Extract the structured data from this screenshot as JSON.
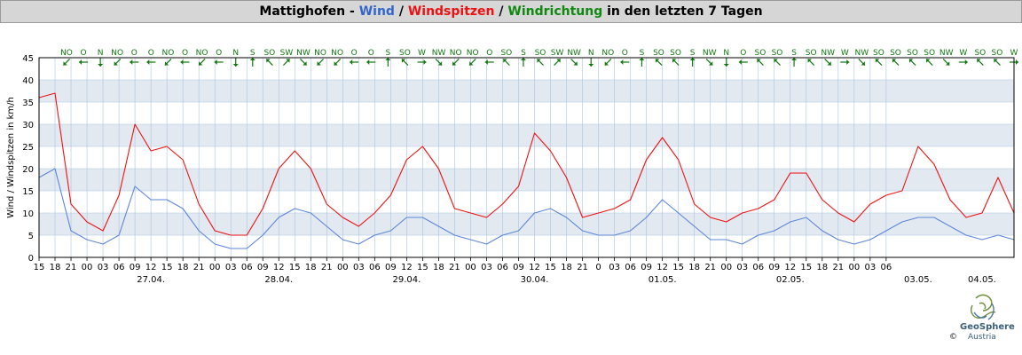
{
  "title": {
    "place": "Mattighofen",
    "sep1": " - ",
    "wind": "Wind",
    "sep2": " / ",
    "gusts": "Windspitzen",
    "sep3": " / ",
    "direction": "Windrichtung",
    "rest": " in den letzten 7 Tagen"
  },
  "logo": {
    "name": "GeoSphere",
    "sub": "Austria",
    "copyright": "©"
  },
  "colors": {
    "wind": "#5b86d9",
    "gusts": "#ee1111",
    "direction": "#117711",
    "band": "#e3e9f1",
    "grid": "#a9c3e0"
  },
  "chart_data": {
    "type": "line",
    "title": "Mattighofen - Wind / Windspitzen / Windrichtung in den letzten 7 Tagen",
    "ylabel": "Wind / Windspitzen in km/h",
    "ylim": [
      0,
      45
    ],
    "yticks": [
      0,
      5,
      10,
      15,
      20,
      25,
      30,
      35,
      40,
      45
    ],
    "x_start": "2024-04-26 15:00",
    "x_end": "2024-05-04 06:00",
    "xtick_hours": [
      "15",
      "18",
      "21",
      "00",
      "03",
      "06",
      "09",
      "12",
      "15",
      "18",
      "21",
      "00",
      "03",
      "06",
      "09",
      "12",
      "15",
      "18",
      "21",
      "00",
      "03",
      "06",
      "09",
      "12",
      "15",
      "18",
      "21",
      "00",
      "03",
      "06",
      "09",
      "12",
      "15",
      "18",
      "21",
      "0",
      "03",
      "06",
      "09",
      "12",
      "15",
      "18",
      "21",
      "00",
      "03",
      "06",
      "09",
      "12",
      "15",
      "18",
      "21",
      "00",
      "03",
      "06"
    ],
    "date_labels": [
      {
        "label": "27.04.",
        "at": "2024-04-27 12:00"
      },
      {
        "label": "28.04.",
        "at": "2024-04-28 12:00"
      },
      {
        "label": "29.04.",
        "at": "2024-04-29 12:00"
      },
      {
        "label": "30.04.",
        "at": "2024-04-30 12:00"
      },
      {
        "label": "01.05.",
        "at": "2024-05-01 12:00"
      },
      {
        "label": "02.05.",
        "at": "2024-05-02 12:00"
      },
      {
        "label": "03.05.",
        "at": "2024-05-03 12:00"
      },
      {
        "label": "04.05.",
        "at": "2024-05-04 00:00"
      }
    ],
    "series": [
      {
        "name": "Wind",
        "color": "#5b86d9",
        "time": [
          "2024-04-26 15:00",
          "2024-04-26 18:00",
          "2024-04-26 21:00",
          "2024-04-27 00:00",
          "2024-04-27 03:00",
          "2024-04-27 06:00",
          "2024-04-27 09:00",
          "2024-04-27 12:00",
          "2024-04-27 15:00",
          "2024-04-27 18:00",
          "2024-04-27 21:00",
          "2024-04-28 00:00",
          "2024-04-28 03:00",
          "2024-04-28 06:00",
          "2024-04-28 09:00",
          "2024-04-28 12:00",
          "2024-04-28 15:00",
          "2024-04-28 18:00",
          "2024-04-28 21:00",
          "2024-04-29 00:00",
          "2024-04-29 03:00",
          "2024-04-29 06:00",
          "2024-04-29 09:00",
          "2024-04-29 12:00",
          "2024-04-29 15:00",
          "2024-04-29 18:00",
          "2024-04-29 21:00",
          "2024-04-30 00:00",
          "2024-04-30 03:00",
          "2024-04-30 06:00",
          "2024-04-30 09:00",
          "2024-04-30 12:00",
          "2024-04-30 15:00",
          "2024-04-30 18:00",
          "2024-04-30 21:00",
          "2024-05-01 00:00",
          "2024-05-01 03:00",
          "2024-05-01 06:00",
          "2024-05-01 09:00",
          "2024-05-01 12:00",
          "2024-05-01 15:00",
          "2024-05-01 18:00",
          "2024-05-01 21:00",
          "2024-05-02 00:00",
          "2024-05-02 03:00",
          "2024-05-02 06:00",
          "2024-05-02 09:00",
          "2024-05-02 12:00",
          "2024-05-02 15:00",
          "2024-05-02 18:00",
          "2024-05-02 21:00",
          "2024-05-03 00:00",
          "2024-05-03 03:00",
          "2024-05-03 06:00",
          "2024-05-03 09:00",
          "2024-05-03 12:00",
          "2024-05-03 15:00",
          "2024-05-03 18:00",
          "2024-05-03 21:00",
          "2024-05-04 00:00",
          "2024-05-04 03:00",
          "2024-05-04 06:00"
        ],
        "values": [
          18,
          20,
          6,
          4,
          3,
          5,
          16,
          13,
          13,
          11,
          6,
          3,
          2,
          2,
          5,
          9,
          11,
          10,
          7,
          4,
          3,
          5,
          6,
          9,
          9,
          7,
          5,
          4,
          3,
          5,
          6,
          10,
          11,
          9,
          6,
          5,
          5,
          6,
          9,
          13,
          10,
          7,
          4,
          4,
          3,
          5,
          6,
          8,
          9,
          6,
          4,
          3,
          4,
          6,
          8,
          9,
          9,
          7,
          5,
          4,
          5,
          4
        ]
      },
      {
        "name": "Windspitzen",
        "color": "#ee1111",
        "time": [
          "2024-04-26 15:00",
          "2024-04-26 18:00",
          "2024-04-26 21:00",
          "2024-04-27 00:00",
          "2024-04-27 03:00",
          "2024-04-27 06:00",
          "2024-04-27 09:00",
          "2024-04-27 12:00",
          "2024-04-27 15:00",
          "2024-04-27 18:00",
          "2024-04-27 21:00",
          "2024-04-28 00:00",
          "2024-04-28 03:00",
          "2024-04-28 06:00",
          "2024-04-28 09:00",
          "2024-04-28 12:00",
          "2024-04-28 15:00",
          "2024-04-28 18:00",
          "2024-04-28 21:00",
          "2024-04-29 00:00",
          "2024-04-29 03:00",
          "2024-04-29 06:00",
          "2024-04-29 09:00",
          "2024-04-29 12:00",
          "2024-04-29 15:00",
          "2024-04-29 18:00",
          "2024-04-29 21:00",
          "2024-04-30 00:00",
          "2024-04-30 03:00",
          "2024-04-30 06:00",
          "2024-04-30 09:00",
          "2024-04-30 12:00",
          "2024-04-30 15:00",
          "2024-04-30 18:00",
          "2024-04-30 21:00",
          "2024-05-01 00:00",
          "2024-05-01 03:00",
          "2024-05-01 06:00",
          "2024-05-01 09:00",
          "2024-05-01 12:00",
          "2024-05-01 15:00",
          "2024-05-01 18:00",
          "2024-05-01 21:00",
          "2024-05-02 00:00",
          "2024-05-02 03:00",
          "2024-05-02 06:00",
          "2024-05-02 09:00",
          "2024-05-02 12:00",
          "2024-05-02 15:00",
          "2024-05-02 18:00",
          "2024-05-02 21:00",
          "2024-05-03 00:00",
          "2024-05-03 03:00",
          "2024-05-03 06:00",
          "2024-05-03 09:00",
          "2024-05-03 12:00",
          "2024-05-03 15:00",
          "2024-05-03 18:00",
          "2024-05-03 21:00",
          "2024-05-04 00:00",
          "2024-05-04 03:00",
          "2024-05-04 06:00"
        ],
        "values": [
          36,
          37,
          12,
          8,
          6,
          14,
          30,
          24,
          25,
          22,
          12,
          6,
          5,
          5,
          11,
          20,
          24,
          20,
          12,
          9,
          7,
          10,
          14,
          22,
          25,
          20,
          11,
          10,
          9,
          12,
          16,
          28,
          24,
          18,
          9,
          10,
          11,
          13,
          22,
          27,
          22,
          12,
          9,
          8,
          10,
          11,
          13,
          19,
          19,
          13,
          10,
          8,
          12,
          14,
          15,
          25,
          21,
          13,
          9,
          10,
          18,
          10
        ]
      }
    ],
    "directions": [
      "NO",
      "O",
      "N",
      "NO",
      "O",
      "O",
      "NO",
      "O",
      "NO",
      "O",
      "N",
      "S",
      "SO",
      "SW",
      "NW",
      "NO",
      "NO",
      "O",
      "O",
      "S",
      "SO",
      "W",
      "NW",
      "NO",
      "NO",
      "O",
      "SO",
      "S",
      "SO",
      "SW",
      "NW",
      "N",
      "NO",
      "O",
      "S",
      "SO",
      "SO",
      "S",
      "NW",
      "N",
      "O",
      "SO",
      "SO",
      "S",
      "SO",
      "NW",
      "W",
      "NW",
      "SO",
      "SO",
      "SO",
      "SO",
      "NW",
      "W",
      "SO",
      "SO",
      "W"
    ]
  }
}
